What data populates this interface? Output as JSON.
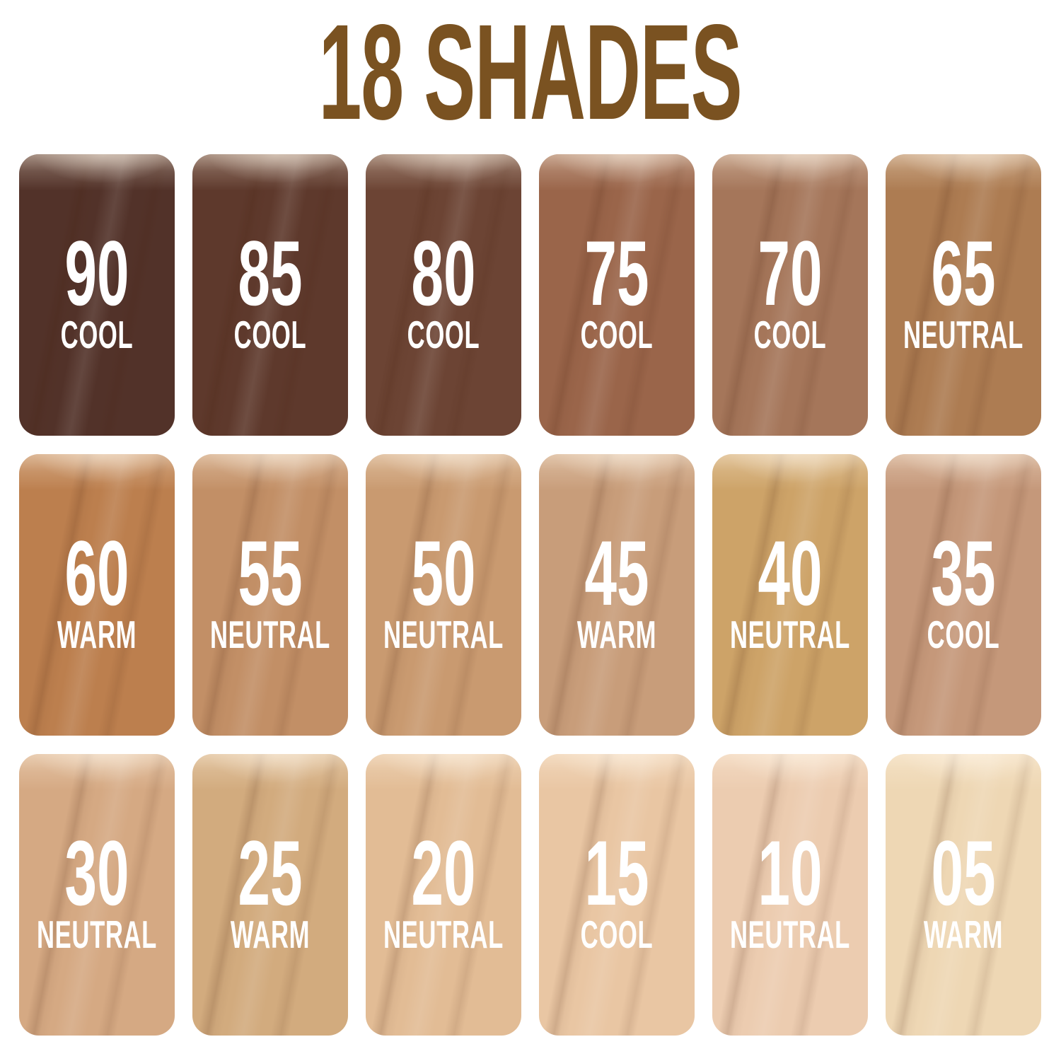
{
  "title": "18 SHADES",
  "colors": {
    "background": "#ffffff",
    "title_text": "#7a5221",
    "tile_text": "#ffffff"
  },
  "shades": [
    {
      "number": "90",
      "undertone": "COOL",
      "color": "#523229"
    },
    {
      "number": "85",
      "undertone": "COOL",
      "color": "#5e392c"
    },
    {
      "number": "80",
      "undertone": "COOL",
      "color": "#6c4434"
    },
    {
      "number": "75",
      "undertone": "COOL",
      "color": "#9a654a"
    },
    {
      "number": "70",
      "undertone": "COOL",
      "color": "#a5765a"
    },
    {
      "number": "65",
      "undertone": "NEUTRAL",
      "color": "#ad7c52"
    },
    {
      "number": "60",
      "undertone": "WARM",
      "color": "#bc7f4e"
    },
    {
      "number": "55",
      "undertone": "NEUTRAL",
      "color": "#c28f66"
    },
    {
      "number": "50",
      "undertone": "NEUTRAL",
      "color": "#c99a70"
    },
    {
      "number": "45",
      "undertone": "WARM",
      "color": "#c89d7a"
    },
    {
      "number": "40",
      "undertone": "NEUTRAL",
      "color": "#cda368"
    },
    {
      "number": "35",
      "undertone": "COOL",
      "color": "#c5987a"
    },
    {
      "number": "30",
      "undertone": "NEUTRAL",
      "color": "#d5a983"
    },
    {
      "number": "25",
      "undertone": "WARM",
      "color": "#d2ab7e"
    },
    {
      "number": "20",
      "undertone": "NEUTRAL",
      "color": "#e2bc95"
    },
    {
      "number": "15",
      "undertone": "COOL",
      "color": "#e9c6a3"
    },
    {
      "number": "10",
      "undertone": "NEUTRAL",
      "color": "#ecccb0"
    },
    {
      "number": "05",
      "undertone": "WARM",
      "color": "#eed7b4"
    }
  ]
}
